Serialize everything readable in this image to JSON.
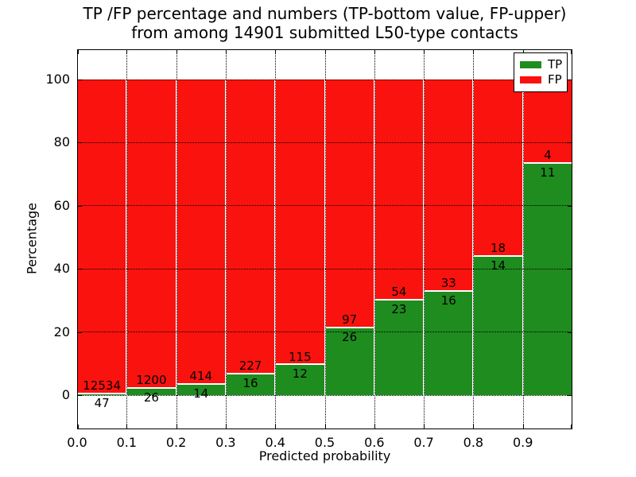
{
  "title": {
    "line1": "TP /FP percentage and numbers (TP-bottom value, FP-upper)",
    "line2": "from among 14901 submitted L50-type contacts"
  },
  "axes": {
    "xlabel": "Predicted probability",
    "ylabel": "Percentage",
    "x_ticks": [
      "0.0",
      "0.1",
      "0.2",
      "0.3",
      "0.4",
      "0.5",
      "0.6",
      "0.7",
      "0.8",
      "0.9"
    ],
    "y_ticks": [
      "0",
      "20",
      "40",
      "60",
      "80",
      "100"
    ],
    "y_tick_values": [
      0,
      20,
      40,
      60,
      80,
      100
    ],
    "xlim": [
      0.0,
      1.0
    ],
    "ylim": [
      -11,
      110
    ],
    "grid": "dotted"
  },
  "legend": {
    "position": "upper-right",
    "entries": [
      {
        "label": "TP",
        "color": "#1f8c1f"
      },
      {
        "label": "FP",
        "color": "#fa120e"
      }
    ]
  },
  "chart_data": {
    "type": "bar",
    "stacked": true,
    "normalized_to_percent": true,
    "title": "TP /FP percentage and numbers (TP-bottom value, FP-upper) from among 14901 submitted L50-type contacts",
    "xlabel": "Predicted probability",
    "ylabel": "Percentage",
    "total_contacts": 14901,
    "categories": [
      "0.0-0.1",
      "0.1-0.2",
      "0.2-0.3",
      "0.3-0.4",
      "0.4-0.5",
      "0.5-0.6",
      "0.6-0.7",
      "0.7-0.8",
      "0.8-0.9",
      "0.9-1.0"
    ],
    "series": [
      {
        "name": "TP",
        "color": "#1f8c1f",
        "values": [
          47,
          26,
          14,
          16,
          12,
          26,
          23,
          16,
          14,
          11
        ]
      },
      {
        "name": "FP",
        "color": "#fa120e",
        "values": [
          12534,
          1200,
          414,
          227,
          115,
          97,
          54,
          33,
          18,
          4
        ]
      }
    ],
    "tp_percent": [
      0.37,
      2.12,
      3.27,
      6.58,
      9.45,
      21.14,
      29.87,
      32.65,
      43.75,
      73.33
    ]
  }
}
